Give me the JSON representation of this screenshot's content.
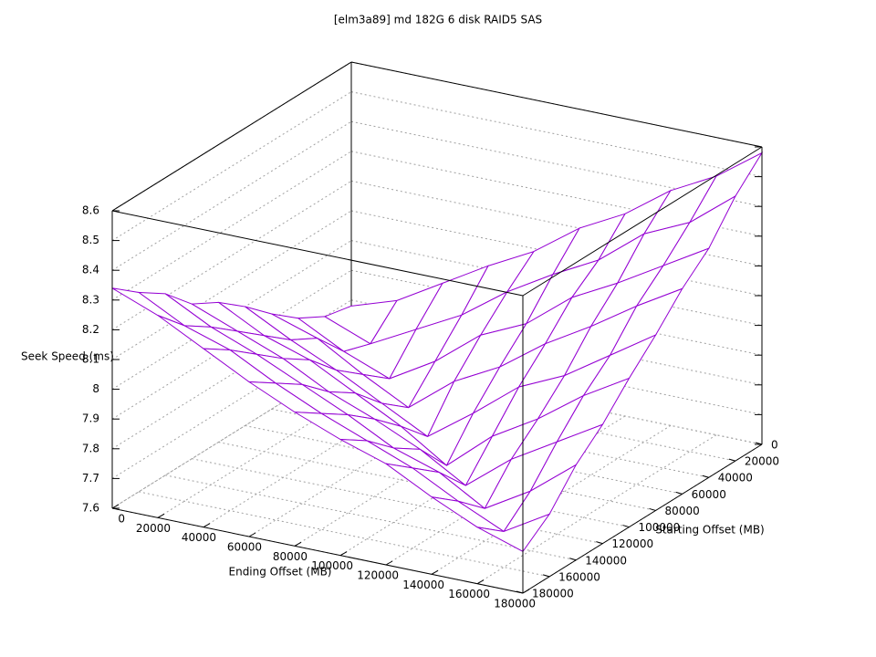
{
  "chart_data": {
    "type": "surface",
    "title": "[elm3a89] md 182G 6 disk RAID5 SAS",
    "xlabel": "Ending Offset (MB)",
    "ylabel": "Starting Offset (MB)",
    "zlabel": "Seek Speed (ms)",
    "x": [
      0,
      20000,
      40000,
      60000,
      80000,
      100000,
      120000,
      140000,
      160000,
      180000
    ],
    "y": [
      0,
      20000,
      40000,
      60000,
      80000,
      100000,
      120000,
      140000,
      160000,
      180000
    ],
    "z": [
      [
        7.78,
        7.83,
        7.92,
        8.01,
        8.09,
        8.2,
        8.28,
        8.39,
        8.47,
        8.58
      ],
      [
        7.8,
        7.74,
        7.82,
        7.9,
        8.01,
        8.1,
        8.18,
        8.3,
        8.37,
        8.49
      ],
      [
        7.85,
        7.77,
        7.71,
        7.8,
        7.92,
        7.99,
        8.11,
        8.19,
        8.28,
        8.37
      ],
      [
        7.92,
        7.87,
        7.78,
        7.7,
        7.82,
        7.9,
        8.01,
        8.1,
        8.2,
        8.29
      ],
      [
        8.0,
        7.92,
        7.85,
        7.77,
        7.69,
        7.8,
        7.92,
        7.99,
        8.09,
        8.19
      ],
      [
        8.07,
        7.99,
        7.94,
        7.86,
        7.78,
        7.68,
        7.81,
        7.9,
        8.01,
        8.1
      ],
      [
        8.12,
        8.06,
        8.0,
        7.92,
        7.86,
        7.79,
        7.7,
        7.82,
        7.91,
        8.0
      ],
      [
        8.21,
        8.13,
        8.07,
        8.0,
        7.93,
        7.85,
        7.8,
        7.71,
        7.8,
        7.92
      ],
      [
        8.27,
        8.19,
        8.14,
        8.06,
        7.99,
        7.93,
        7.87,
        7.79,
        7.72,
        7.81
      ],
      [
        8.34,
        8.28,
        8.2,
        8.12,
        8.05,
        7.99,
        7.94,
        7.86,
        7.79,
        7.74
      ]
    ],
    "color": "#9400d3",
    "back_color": "#009e73",
    "xlim": [
      0,
      180000
    ],
    "ylim": [
      0,
      180000
    ],
    "zlim": [
      7.6,
      8.6
    ],
    "xticks": [
      0,
      20000,
      40000,
      60000,
      80000,
      100000,
      120000,
      140000,
      160000,
      180000
    ],
    "yticks": [
      0,
      20000,
      40000,
      60000,
      80000,
      100000,
      120000,
      140000,
      160000,
      180000
    ],
    "zticks": [
      7.6,
      7.7,
      7.8,
      7.9,
      8,
      8.1,
      8.2,
      8.3,
      8.4,
      8.5,
      8.6
    ],
    "grid": true
  }
}
